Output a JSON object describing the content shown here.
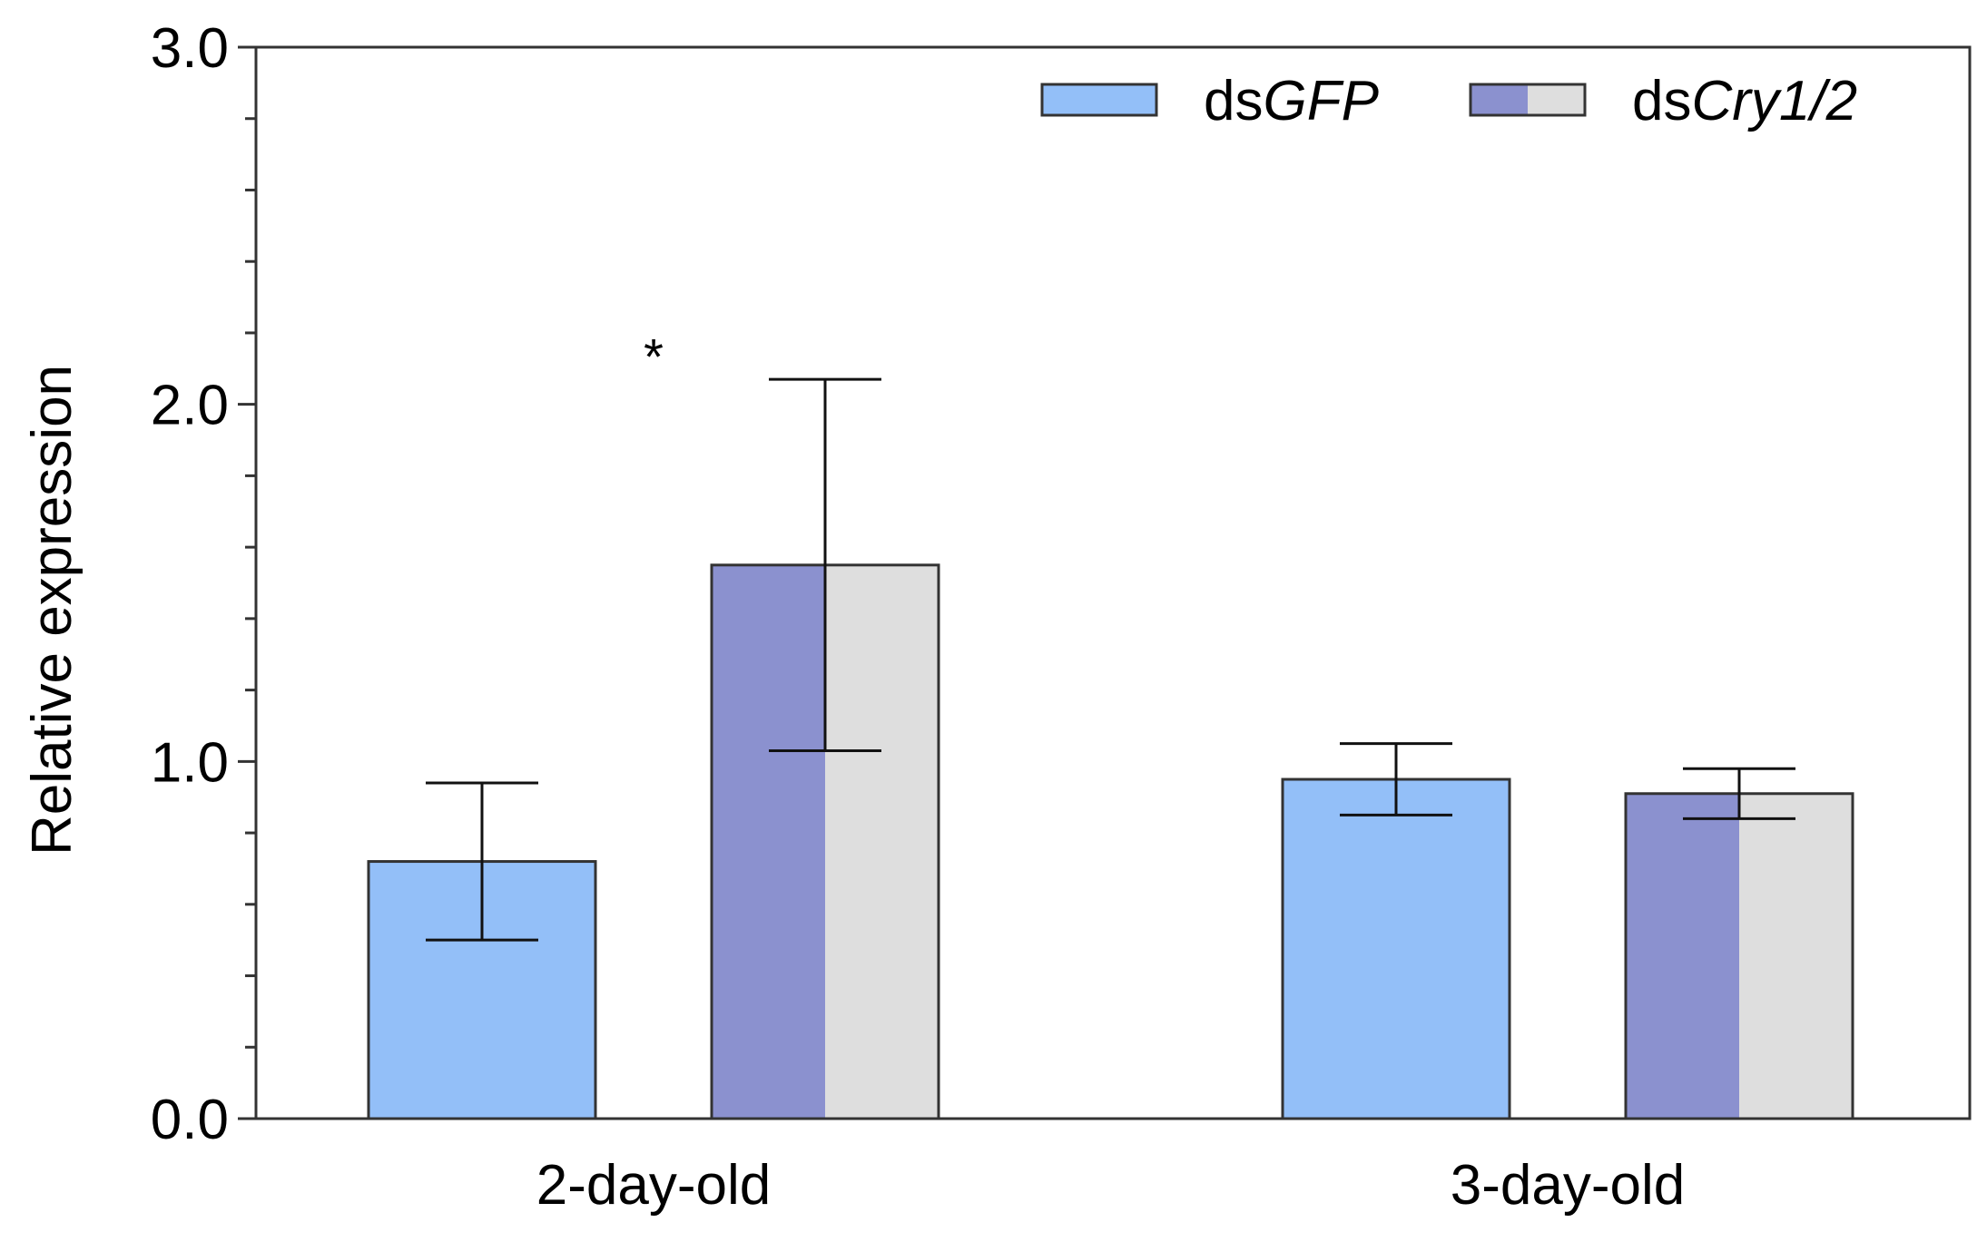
{
  "chart_data": {
    "type": "bar",
    "title": "",
    "xlabel": "",
    "ylabel": "Relative expression",
    "ylim": [
      0,
      3
    ],
    "yticks": [
      "0.0",
      "1.0",
      "2.0",
      "3.0"
    ],
    "yminor_step": 0.2,
    "categories": [
      "2-day-old",
      "3-day-old"
    ],
    "series": [
      {
        "name": "dsGFP",
        "prefix": "ds",
        "gene": "GFP",
        "colors": [
          "#93bff8"
        ],
        "values": [
          0.72,
          0.95
        ],
        "errors": [
          0.22,
          0.1
        ]
      },
      {
        "name": "dsCry1/2",
        "prefix": "ds",
        "gene": "Cry1/2",
        "colors": [
          "#8b91cf",
          "#dedede"
        ],
        "values": [
          1.55,
          0.91
        ],
        "errors": [
          0.52,
          0.07
        ]
      }
    ],
    "annotations": [
      {
        "text": "*",
        "category": "2-day-old",
        "value": 2.17
      }
    ],
    "grid": false,
    "legend_position": "top-right"
  }
}
